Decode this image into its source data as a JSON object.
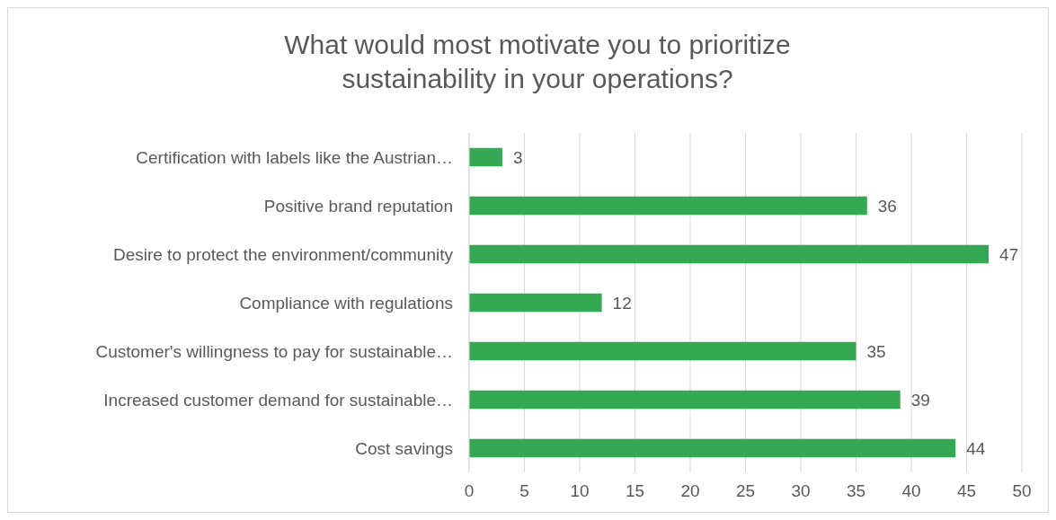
{
  "chart_data": {
    "type": "bar",
    "orientation": "horizontal",
    "title": "What would most motivate you to prioritize sustainability in your operations?",
    "categories": [
      "Certification with labels like the Austrian…",
      "Positive brand reputation",
      "Desire to protect the environment/community",
      "Compliance with regulations",
      "Customer's willingness to pay for sustainable…",
      "Increased customer demand for sustainable…",
      "Cost savings"
    ],
    "values": [
      3,
      36,
      47,
      12,
      35,
      39,
      44
    ],
    "color": "#34a853",
    "xlim": [
      0,
      50
    ],
    "xticks": [
      0,
      5,
      10,
      15,
      20,
      25,
      30,
      35,
      40,
      45,
      50
    ],
    "grid": "x",
    "data_labels": true
  }
}
